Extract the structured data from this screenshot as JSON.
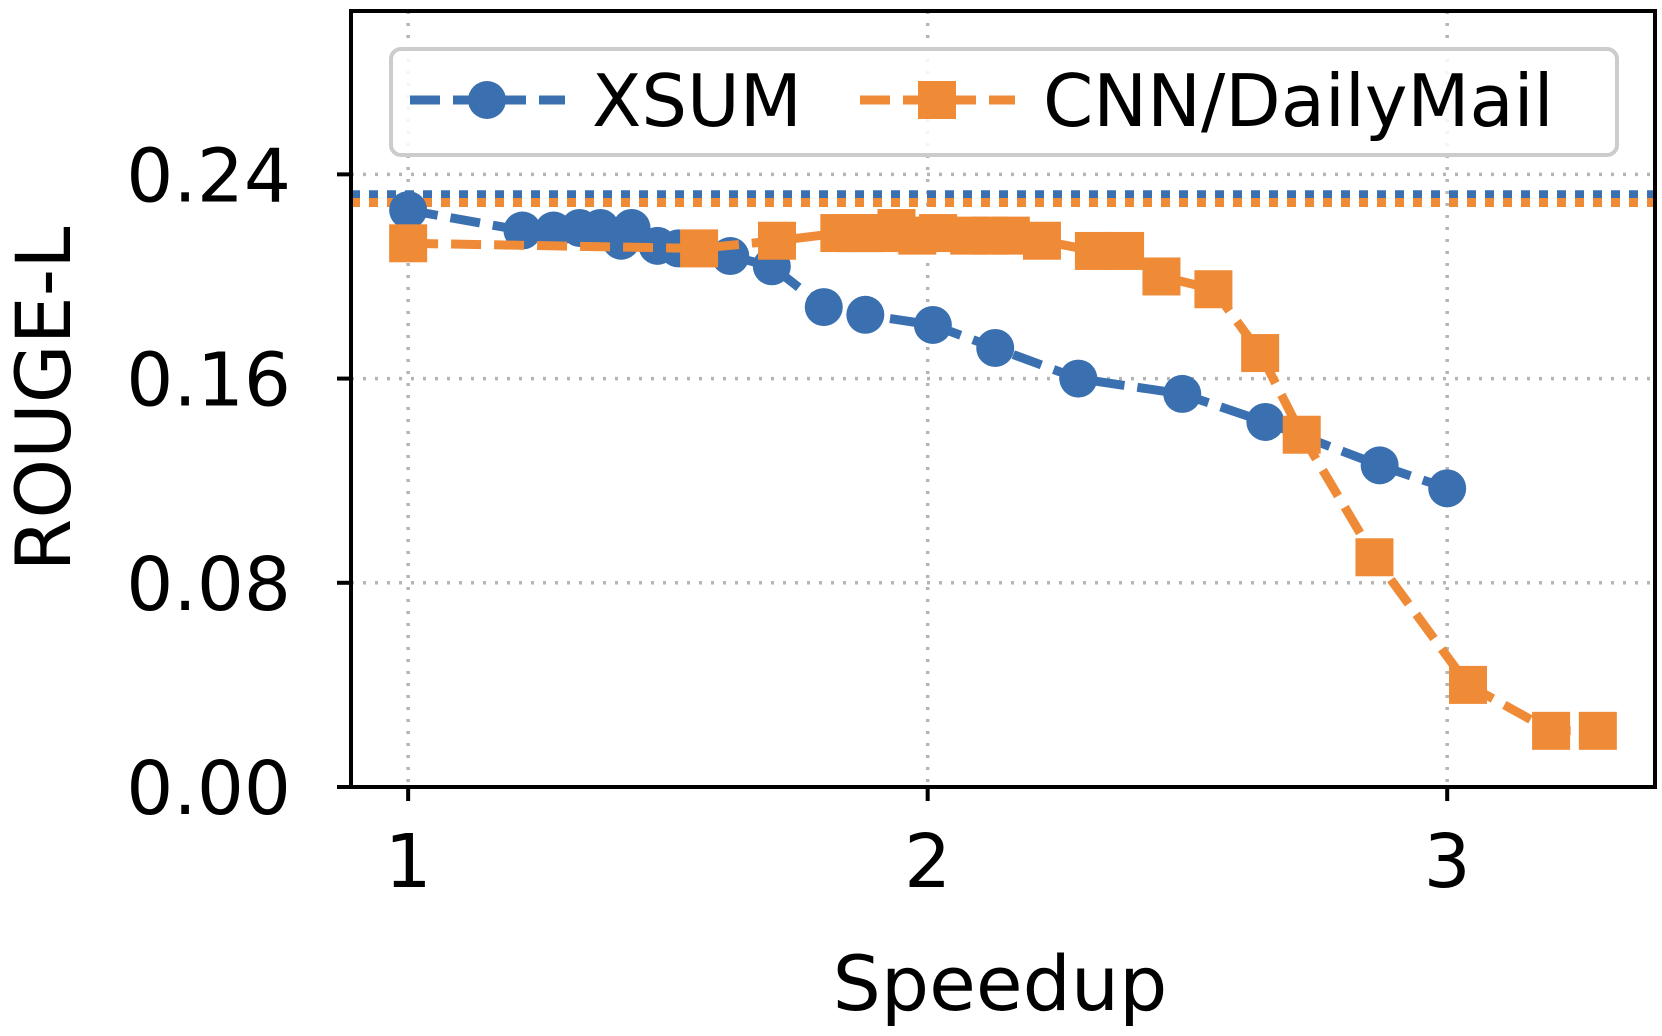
{
  "chart_data": {
    "type": "line",
    "title": "",
    "xlabel": "Speedup",
    "ylabel": "ROUGE-L",
    "xlim": [
      0.89,
      3.4
    ],
    "ylim": [
      0.0,
      0.304
    ],
    "x_ticks": [
      "1",
      "2",
      "3"
    ],
    "y_ticks": [
      "0.00",
      "0.08",
      "0.16",
      "0.24"
    ],
    "grid": true,
    "legend_position": "top",
    "series": [
      {
        "name": "XSUM",
        "color": "#3a6fb0",
        "marker": "circle",
        "line_style": "dashed",
        "x": [
          1.0,
          1.22,
          1.28,
          1.33,
          1.37,
          1.41,
          1.43,
          1.48,
          1.52,
          1.62,
          1.7,
          1.8,
          1.88,
          2.01,
          2.13,
          2.29,
          2.49,
          2.65,
          2.87,
          3.0
        ],
        "y": [
          0.226,
          0.218,
          0.218,
          0.219,
          0.219,
          0.214,
          0.219,
          0.212,
          0.211,
          0.208,
          0.204,
          0.188,
          0.185,
          0.181,
          0.172,
          0.16,
          0.154,
          0.143,
          0.126,
          0.117
        ]
      },
      {
        "name": "CNN/DailyMail",
        "color": "#ef8a37",
        "marker": "square",
        "line_style": "dashed",
        "x": [
          1.0,
          1.56,
          1.71,
          1.83,
          1.86,
          1.88,
          1.92,
          1.94,
          1.98,
          2.02,
          2.08,
          2.12,
          2.16,
          2.22,
          2.32,
          2.38,
          2.45,
          2.55,
          2.64,
          2.72,
          2.86,
          3.04,
          3.2,
          3.29
        ],
        "y": [
          0.213,
          0.211,
          0.214,
          0.217,
          0.217,
          0.217,
          0.217,
          0.219,
          0.216,
          0.217,
          0.216,
          0.216,
          0.216,
          0.214,
          0.21,
          0.21,
          0.2,
          0.195,
          0.17,
          0.138,
          0.09,
          0.04,
          0.022,
          0.022
        ]
      }
    ],
    "reference_lines": [
      {
        "series": "XSUM",
        "y": 0.232,
        "style": "dotted",
        "color": "#3a6fb0"
      },
      {
        "series": "CNN/DailyMail",
        "y": 0.229,
        "style": "dotted",
        "color": "#ef8a37"
      }
    ]
  }
}
